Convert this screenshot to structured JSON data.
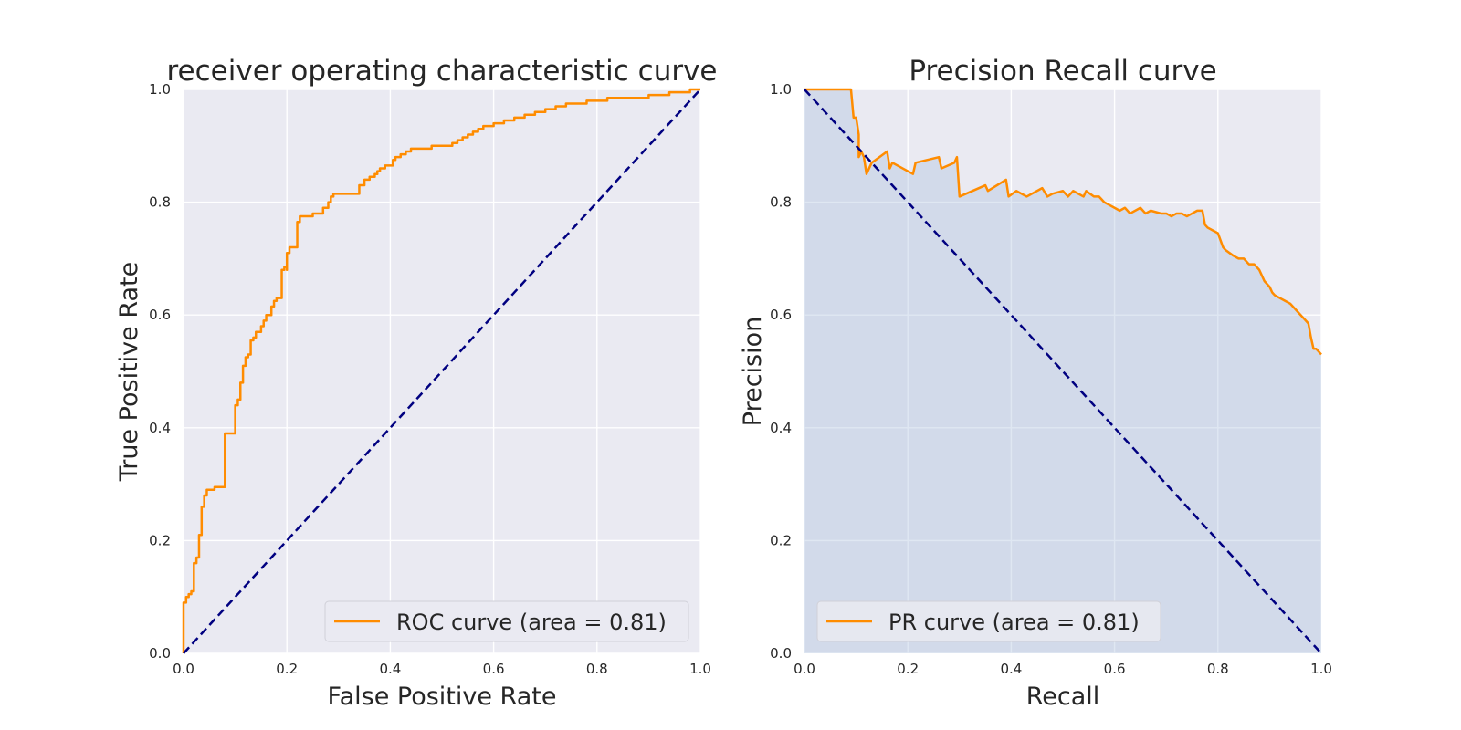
{
  "colors": {
    "figure_background": "#ffffff",
    "axes_background": "#eaeaf2",
    "grid": "#ffffff",
    "curve": "#ff8c00",
    "diagonal": "#000080",
    "fill_under_pr": "#b0c4de",
    "legend_background": "#eaeaf2",
    "text": "#262626"
  },
  "chart_data": [
    {
      "type": "line",
      "title": "receiver operating characteristic curve",
      "xlabel": "False Positive Rate",
      "ylabel": "True Positive Rate",
      "xlim": [
        0.0,
        1.0
      ],
      "ylim": [
        0.0,
        1.0
      ],
      "xticks": [
        "0.0",
        "0.2",
        "0.4",
        "0.6",
        "0.8",
        "1.0"
      ],
      "yticks": [
        "0.0",
        "0.2",
        "0.4",
        "0.6",
        "0.8",
        "1.0"
      ],
      "grid": true,
      "legend_position": "lower right",
      "step": true,
      "series": [
        {
          "name": "ROC curve (area = 0.81)",
          "style": "solid",
          "color": "#ff8c00",
          "x": [
            0.0,
            0.0,
            0.005,
            0.01,
            0.015,
            0.02,
            0.02,
            0.025,
            0.03,
            0.03,
            0.035,
            0.04,
            0.04,
            0.045,
            0.05,
            0.05,
            0.06,
            0.07,
            0.08,
            0.08,
            0.09,
            0.1,
            0.1,
            0.105,
            0.11,
            0.11,
            0.115,
            0.12,
            0.125,
            0.13,
            0.135,
            0.14,
            0.15,
            0.155,
            0.16,
            0.17,
            0.175,
            0.18,
            0.19,
            0.195,
            0.2,
            0.2,
            0.205,
            0.21,
            0.215,
            0.22,
            0.225,
            0.23,
            0.24,
            0.25,
            0.26,
            0.27,
            0.28,
            0.285,
            0.29,
            0.31,
            0.33,
            0.34,
            0.35,
            0.36,
            0.37,
            0.375,
            0.38,
            0.39,
            0.4,
            0.405,
            0.41,
            0.42,
            0.43,
            0.44,
            0.46,
            0.48,
            0.5,
            0.52,
            0.53,
            0.54,
            0.55,
            0.56,
            0.57,
            0.58,
            0.6,
            0.62,
            0.64,
            0.66,
            0.68,
            0.7,
            0.72,
            0.74,
            0.76,
            0.78,
            0.8,
            0.82,
            0.84,
            0.86,
            0.88,
            0.9,
            0.92,
            0.94,
            0.96,
            0.98,
            1.0
          ],
          "y": [
            0.0,
            0.09,
            0.1,
            0.105,
            0.11,
            0.12,
            0.16,
            0.17,
            0.18,
            0.21,
            0.26,
            0.26,
            0.28,
            0.29,
            0.29,
            0.29,
            0.295,
            0.295,
            0.35,
            0.39,
            0.39,
            0.41,
            0.44,
            0.45,
            0.455,
            0.48,
            0.51,
            0.525,
            0.53,
            0.555,
            0.56,
            0.57,
            0.58,
            0.59,
            0.6,
            0.615,
            0.625,
            0.63,
            0.68,
            0.685,
            0.68,
            0.71,
            0.72,
            0.72,
            0.72,
            0.765,
            0.775,
            0.775,
            0.775,
            0.78,
            0.78,
            0.79,
            0.8,
            0.81,
            0.815,
            0.815,
            0.815,
            0.83,
            0.84,
            0.845,
            0.85,
            0.855,
            0.86,
            0.865,
            0.865,
            0.875,
            0.88,
            0.885,
            0.89,
            0.895,
            0.895,
            0.9,
            0.9,
            0.905,
            0.91,
            0.915,
            0.92,
            0.925,
            0.93,
            0.935,
            0.94,
            0.945,
            0.95,
            0.955,
            0.96,
            0.965,
            0.97,
            0.975,
            0.975,
            0.98,
            0.98,
            0.985,
            0.985,
            0.985,
            0.985,
            0.99,
            0.99,
            0.995,
            0.995,
            1.0,
            1.0
          ]
        },
        {
          "name": "",
          "style": "dashed",
          "color": "#000080",
          "x": [
            0.0,
            1.0
          ],
          "y": [
            0.0,
            1.0
          ]
        }
      ],
      "legend": [
        "ROC curve (area = 0.81)"
      ]
    },
    {
      "type": "line",
      "title": "Precision Recall curve",
      "xlabel": "Recall",
      "ylabel": "Precision",
      "xlim": [
        0.0,
        1.0
      ],
      "ylim": [
        0.0,
        1.0
      ],
      "xticks": [
        "0.0",
        "0.2",
        "0.4",
        "0.6",
        "0.8",
        "1.0"
      ],
      "yticks": [
        "0.0",
        "0.2",
        "0.4",
        "0.6",
        "0.8",
        "1.0"
      ],
      "grid": true,
      "legend_position": "lower left",
      "filled_area": true,
      "series": [
        {
          "name": "PR curve (area = 0.81)",
          "style": "solid",
          "color": "#ff8c00",
          "x": [
            0.0,
            0.09,
            0.095,
            0.1,
            0.105,
            0.105,
            0.11,
            0.115,
            0.12,
            0.13,
            0.16,
            0.165,
            0.17,
            0.21,
            0.215,
            0.26,
            0.265,
            0.29,
            0.295,
            0.3,
            0.35,
            0.355,
            0.39,
            0.395,
            0.41,
            0.43,
            0.46,
            0.47,
            0.48,
            0.5,
            0.51,
            0.52,
            0.54,
            0.545,
            0.56,
            0.57,
            0.575,
            0.58,
            0.59,
            0.6,
            0.61,
            0.62,
            0.63,
            0.65,
            0.66,
            0.67,
            0.69,
            0.7,
            0.71,
            0.72,
            0.73,
            0.74,
            0.75,
            0.76,
            0.77,
            0.775,
            0.78,
            0.79,
            0.8,
            0.81,
            0.815,
            0.83,
            0.84,
            0.85,
            0.86,
            0.87,
            0.88,
            0.89,
            0.9,
            0.905,
            0.91,
            0.92,
            0.93,
            0.94,
            0.95,
            0.955,
            0.96,
            0.97,
            0.975,
            0.98,
            0.985,
            0.99,
            1.0
          ],
          "y": [
            1.0,
            1.0,
            0.95,
            0.95,
            0.92,
            0.88,
            0.89,
            0.88,
            0.85,
            0.87,
            0.89,
            0.86,
            0.87,
            0.85,
            0.87,
            0.88,
            0.86,
            0.87,
            0.88,
            0.81,
            0.83,
            0.82,
            0.84,
            0.81,
            0.82,
            0.81,
            0.825,
            0.81,
            0.815,
            0.82,
            0.81,
            0.82,
            0.81,
            0.82,
            0.81,
            0.81,
            0.805,
            0.8,
            0.795,
            0.79,
            0.785,
            0.79,
            0.78,
            0.79,
            0.78,
            0.785,
            0.78,
            0.78,
            0.775,
            0.78,
            0.78,
            0.775,
            0.78,
            0.785,
            0.785,
            0.76,
            0.755,
            0.75,
            0.745,
            0.72,
            0.715,
            0.705,
            0.7,
            0.7,
            0.69,
            0.69,
            0.68,
            0.66,
            0.65,
            0.64,
            0.635,
            0.63,
            0.625,
            0.62,
            0.61,
            0.605,
            0.6,
            0.59,
            0.585,
            0.56,
            0.54,
            0.54,
            0.53
          ]
        },
        {
          "name": "",
          "style": "dashed",
          "color": "#000080",
          "x": [
            0.0,
            1.0
          ],
          "y": [
            1.0,
            0.0
          ]
        }
      ],
      "legend": [
        "PR curve (area = 0.81)"
      ]
    }
  ]
}
